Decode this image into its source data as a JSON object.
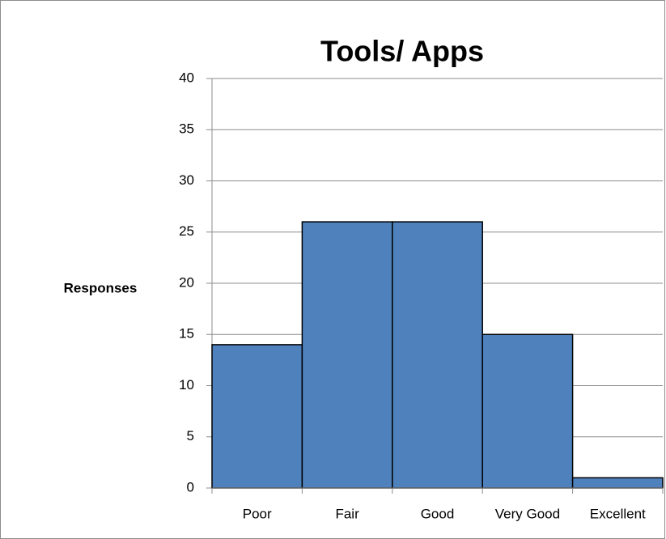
{
  "chart_data": {
    "type": "bar",
    "title": "Tools/ Apps",
    "y_label": "Responses",
    "categories": [
      "Poor",
      "Fair",
      "Good",
      "Very Good",
      "Excellent"
    ],
    "values": [
      14,
      26,
      26,
      15,
      1
    ],
    "color": "#4f81bd",
    "ylim": [
      0,
      40
    ],
    "yticks": [
      0,
      5,
      10,
      15,
      20,
      25,
      30,
      35,
      40
    ],
    "grid": true
  }
}
